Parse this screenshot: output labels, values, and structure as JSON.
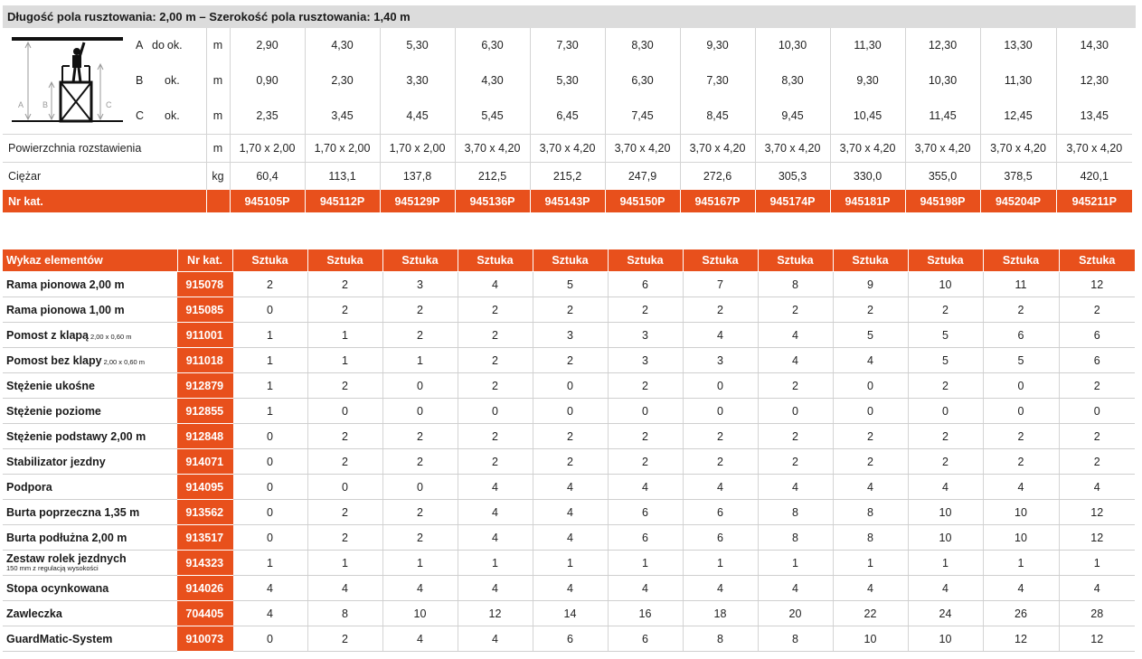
{
  "header": {
    "title": "Długość pola rusztowania: 2,00 m – Szerokość pola rusztowania: 1,40 m"
  },
  "dimensions": [
    {
      "letter": "A",
      "prefix": "do",
      "qualifier": "ok.",
      "unit": "m",
      "values": [
        "2,90",
        "4,30",
        "5,30",
        "6,30",
        "7,30",
        "8,30",
        "9,30",
        "10,30",
        "11,30",
        "12,30",
        "13,30",
        "14,30"
      ]
    },
    {
      "letter": "B",
      "prefix": "",
      "qualifier": "ok.",
      "unit": "m",
      "values": [
        "0,90",
        "2,30",
        "3,30",
        "4,30",
        "5,30",
        "6,30",
        "7,30",
        "8,30",
        "9,30",
        "10,30",
        "11,30",
        "12,30"
      ]
    },
    {
      "letter": "C",
      "prefix": "",
      "qualifier": "ok.",
      "unit": "m",
      "values": [
        "2,35",
        "3,45",
        "4,45",
        "5,45",
        "6,45",
        "7,45",
        "8,45",
        "9,45",
        "10,45",
        "11,45",
        "12,45",
        "13,45"
      ]
    }
  ],
  "illustration": {
    "labels": [
      "A",
      "B",
      "C"
    ]
  },
  "area": {
    "label": "Powierzchnia rozstawienia",
    "unit": "m",
    "values": [
      "1,70 x 2,00",
      "1,70 x 2,00",
      "1,70 x 2,00",
      "3,70 x 4,20",
      "3,70 x 4,20",
      "3,70 x 4,20",
      "3,70 x 4,20",
      "3,70 x 4,20",
      "3,70 x 4,20",
      "3,70 x 4,20",
      "3,70 x 4,20",
      "3,70 x 4,20"
    ]
  },
  "weight": {
    "label": "Ciężar",
    "unit": "kg",
    "values": [
      "60,4",
      "113,1",
      "137,8",
      "212,5",
      "215,2",
      "247,9",
      "272,6",
      "305,3",
      "330,0",
      "355,0",
      "378,5",
      "420,1"
    ]
  },
  "catalog": {
    "label": "Nr kat.",
    "values": [
      "945105P",
      "945112P",
      "945129P",
      "945136P",
      "945143P",
      "945150P",
      "945167P",
      "945174P",
      "945181P",
      "945198P",
      "945204P",
      "945211P"
    ]
  },
  "elements": {
    "header_name": "Wykaz elementów",
    "header_nr": "Nr kat.",
    "header_unit": "Sztuka",
    "rows": [
      {
        "name": "Rama pionowa 2,00 m",
        "sub": "",
        "nr": "915078",
        "values": [
          "2",
          "2",
          "3",
          "4",
          "5",
          "6",
          "7",
          "8",
          "9",
          "10",
          "11",
          "12"
        ]
      },
      {
        "name": "Rama pionowa 1,00 m",
        "sub": "",
        "nr": "915085",
        "values": [
          "0",
          "2",
          "2",
          "2",
          "2",
          "2",
          "2",
          "2",
          "2",
          "2",
          "2",
          "2"
        ]
      },
      {
        "name": "Pomost z klapą",
        "sub": "2,00 x 0,60 m",
        "nr": "911001",
        "values": [
          "1",
          "1",
          "2",
          "2",
          "3",
          "3",
          "4",
          "4",
          "5",
          "5",
          "6",
          "6"
        ]
      },
      {
        "name": "Pomost bez klapy",
        "sub": "2,00 x 0,60 m",
        "nr": "911018",
        "values": [
          "1",
          "1",
          "1",
          "2",
          "2",
          "3",
          "3",
          "4",
          "4",
          "5",
          "5",
          "6"
        ]
      },
      {
        "name": "Stężenie ukośne",
        "sub": "",
        "nr": "912879",
        "values": [
          "1",
          "2",
          "0",
          "2",
          "0",
          "2",
          "0",
          "2",
          "0",
          "2",
          "0",
          "2"
        ]
      },
      {
        "name": "Stężenie poziome",
        "sub": "",
        "nr": "912855",
        "values": [
          "1",
          "0",
          "0",
          "0",
          "0",
          "0",
          "0",
          "0",
          "0",
          "0",
          "0",
          "0"
        ]
      },
      {
        "name": "Stężenie podstawy 2,00 m",
        "sub": "",
        "nr": "912848",
        "values": [
          "0",
          "2",
          "2",
          "2",
          "2",
          "2",
          "2",
          "2",
          "2",
          "2",
          "2",
          "2"
        ]
      },
      {
        "name": "Stabilizator jezdny",
        "sub": "",
        "nr": "914071",
        "values": [
          "0",
          "2",
          "2",
          "2",
          "2",
          "2",
          "2",
          "2",
          "2",
          "2",
          "2",
          "2"
        ]
      },
      {
        "name": "Podpora",
        "sub": "",
        "nr": "914095",
        "values": [
          "0",
          "0",
          "0",
          "4",
          "4",
          "4",
          "4",
          "4",
          "4",
          "4",
          "4",
          "4"
        ]
      },
      {
        "name": "Burta poprzeczna 1,35 m",
        "sub": "",
        "nr": "913562",
        "values": [
          "0",
          "2",
          "2",
          "4",
          "4",
          "6",
          "6",
          "8",
          "8",
          "10",
          "10",
          "12"
        ]
      },
      {
        "name": "Burta podłużna 2,00 m",
        "sub": "",
        "nr": "913517",
        "values": [
          "0",
          "2",
          "2",
          "4",
          "4",
          "6",
          "6",
          "8",
          "8",
          "10",
          "10",
          "12"
        ]
      },
      {
        "name": "Zestaw rolek jezdnych",
        "sub2": "150 mm z regulacją wysokości",
        "nr": "914323",
        "values": [
          "1",
          "1",
          "1",
          "1",
          "1",
          "1",
          "1",
          "1",
          "1",
          "1",
          "1",
          "1"
        ]
      },
      {
        "name": "Stopa ocynkowana",
        "sub": "",
        "nr": "914026",
        "values": [
          "4",
          "4",
          "4",
          "4",
          "4",
          "4",
          "4",
          "4",
          "4",
          "4",
          "4",
          "4"
        ]
      },
      {
        "name": "Zawleczka",
        "sub": "",
        "nr": "704405",
        "values": [
          "4",
          "8",
          "10",
          "12",
          "14",
          "16",
          "18",
          "20",
          "22",
          "24",
          "26",
          "28"
        ]
      },
      {
        "name": "GuardMatic-System",
        "sub": "",
        "nr": "910073",
        "values": [
          "0",
          "2",
          "4",
          "4",
          "6",
          "6",
          "8",
          "8",
          "10",
          "10",
          "12",
          "12"
        ]
      }
    ]
  },
  "colors": {
    "accent": "#e8501c",
    "header_bg": "#dcdcdc",
    "grid": "#d4d4d4"
  }
}
